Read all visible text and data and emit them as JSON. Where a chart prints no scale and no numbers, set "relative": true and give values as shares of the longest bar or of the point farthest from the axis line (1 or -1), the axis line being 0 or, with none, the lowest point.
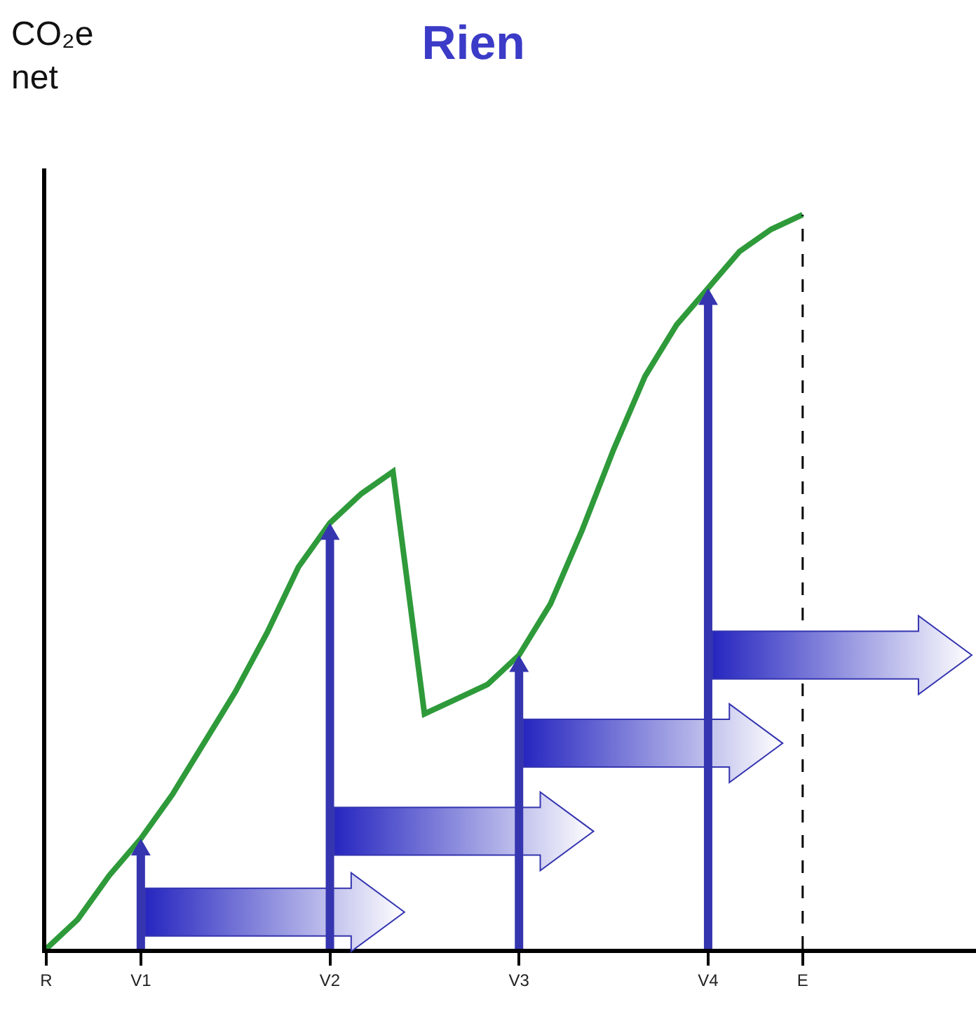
{
  "chart_data": {
    "type": "line",
    "title": "Rien",
    "ylabel": "CO₂e net",
    "relative": true,
    "categories": [
      "R",
      null,
      null,
      "V1",
      null,
      null,
      null,
      null,
      null,
      "V2",
      null,
      null,
      null,
      null,
      null,
      "V3",
      null,
      null,
      null,
      null,
      null,
      "V4",
      null,
      null,
      "E",
      null,
      null,
      null,
      null,
      null
    ],
    "series": [
      {
        "color": "#2e9a3a",
        "values": [
          0,
          0.04,
          0.1,
          0.15,
          0.21,
          0.28,
          0.35,
          0.43,
          0.52,
          0.58,
          0.62,
          0.65,
          0.32,
          0.34,
          0.36,
          0.4,
          0.47,
          0.57,
          0.68,
          0.78,
          0.85,
          0.9,
          0.95,
          0.98,
          1,
          null,
          null,
          null,
          null,
          null
        ]
      }
    ],
    "ref_lines": [
      {
        "axis": "x",
        "value": "E",
        "color": "#000000",
        "line_style": "dashed"
      }
    ],
    "grid": false,
    "marker": "none",
    "line_style": "solid"
  }
}
